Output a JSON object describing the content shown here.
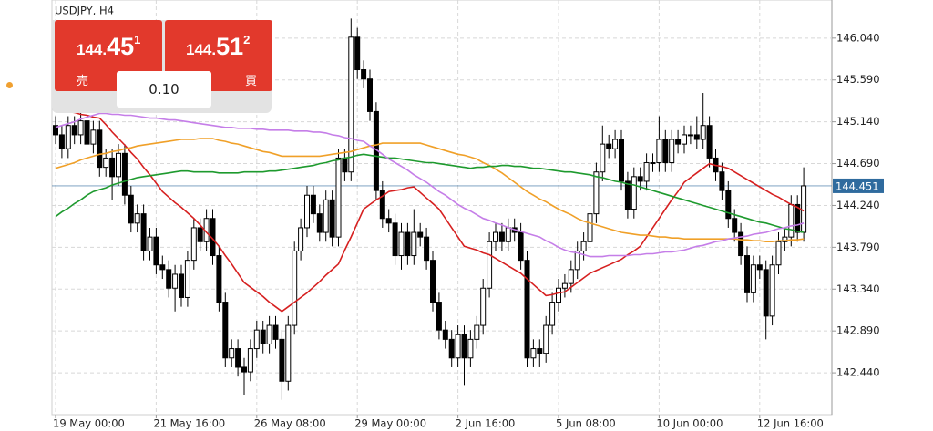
{
  "chart_data": {
    "type": "candlestick",
    "title": "USDJPY, H4",
    "current_price": 144.451,
    "ylim": [
      141.99,
      146.45
    ],
    "yticks": [
      {
        "value": 142.44,
        "label": "142.440"
      },
      {
        "value": 142.89,
        "label": "142.890"
      },
      {
        "value": 143.34,
        "label": "143.340"
      },
      {
        "value": 143.79,
        "label": "143.790"
      },
      {
        "value": 144.24,
        "label": "144.240"
      },
      {
        "value": 144.69,
        "label": "144.690"
      },
      {
        "value": 145.14,
        "label": "145.140"
      },
      {
        "value": 145.59,
        "label": "145.590"
      },
      {
        "value": 146.04,
        "label": "146.040"
      }
    ],
    "grid": true,
    "up_color": "#ffffff",
    "down_color": "#000000",
    "price_line_color": "#2f6b9e",
    "categories": [
      "19 May 00:00",
      null,
      null,
      null,
      null,
      null,
      null,
      null,
      null,
      null,
      null,
      null,
      null,
      null,
      null,
      null,
      "21 May 16:00",
      null,
      null,
      null,
      null,
      null,
      null,
      null,
      null,
      null,
      null,
      null,
      null,
      null,
      null,
      null,
      "26 May 08:00",
      null,
      null,
      null,
      null,
      null,
      null,
      null,
      null,
      null,
      null,
      null,
      null,
      null,
      null,
      null,
      "29 May 00:00",
      null,
      null,
      null,
      null,
      null,
      null,
      null,
      null,
      null,
      null,
      null,
      null,
      null,
      null,
      null,
      "2 Jun 16:00",
      null,
      null,
      null,
      null,
      null,
      null,
      null,
      null,
      null,
      null,
      null,
      null,
      null,
      null,
      null,
      "5 Jun 08:00",
      null,
      null,
      null,
      null,
      null,
      null,
      null,
      null,
      null,
      null,
      null,
      null,
      null,
      null,
      null,
      "10 Jun 00:00",
      null,
      null,
      null,
      null,
      null,
      null,
      null,
      null,
      null,
      null,
      null,
      null,
      null,
      null,
      null,
      "12 Jun 16:00",
      null,
      null,
      null,
      null,
      null,
      null,
      null
    ],
    "open": [
      145.1,
      145.0,
      144.85,
      145.1,
      145.0,
      145.15,
      144.9,
      145.05,
      144.65,
      144.75,
      144.55,
      144.8,
      144.35,
      144.05,
      144.15,
      143.75,
      143.9,
      143.6,
      143.55,
      143.35,
      143.5,
      143.25,
      143.65,
      144.0,
      143.85,
      144.1,
      143.7,
      143.2,
      142.6,
      142.7,
      142.5,
      142.45,
      142.7,
      142.9,
      142.75,
      142.95,
      142.8,
      142.35,
      142.95,
      143.75,
      144.0,
      144.35,
      144.15,
      143.95,
      144.3,
      143.9,
      144.75,
      144.6,
      146.05,
      145.7,
      145.6,
      145.25,
      144.4,
      144.1,
      144.05,
      143.7,
      143.95,
      143.7,
      143.95,
      143.9,
      143.65,
      143.2,
      142.9,
      142.8,
      142.6,
      142.85,
      142.6,
      142.8,
      142.95,
      143.35,
      143.85,
      143.95,
      143.85,
      144.0,
      143.95,
      143.65,
      142.6,
      142.7,
      142.65,
      142.95,
      143.2,
      143.35,
      143.4,
      143.55,
      143.75,
      143.85,
      144.15,
      144.6,
      144.9,
      144.85,
      144.95,
      144.5,
      144.2,
      144.55,
      144.5,
      144.7,
      144.7,
      144.95,
      144.7,
      144.95,
      144.9,
      145.0,
      145.0,
      144.95,
      145.1,
      144.75,
      144.6,
      144.4,
      144.1,
      143.95,
      143.7,
      143.3,
      143.6,
      143.55,
      143.05,
      143.6,
      143.85,
      143.9,
      144.25,
      143.95
    ],
    "high": [
      145.2,
      145.1,
      145.2,
      145.2,
      145.25,
      145.25,
      145.15,
      145.15,
      144.85,
      144.85,
      144.9,
      144.9,
      144.45,
      144.25,
      144.25,
      144.0,
      144.0,
      143.7,
      143.65,
      143.6,
      143.6,
      143.75,
      144.1,
      144.1,
      144.2,
      144.2,
      143.8,
      143.3,
      142.8,
      142.8,
      142.6,
      142.8,
      143.0,
      143.0,
      143.05,
      143.05,
      142.9,
      143.05,
      143.85,
      144.1,
      144.45,
      144.45,
      144.25,
      144.4,
      144.4,
      144.85,
      144.85,
      146.25,
      146.15,
      145.8,
      145.7,
      145.35,
      144.5,
      144.2,
      144.15,
      144.05,
      144.05,
      144.2,
      144.05,
      144.0,
      143.75,
      143.3,
      143.0,
      142.9,
      142.95,
      142.95,
      142.9,
      143.05,
      143.45,
      143.95,
      144.05,
      144.05,
      144.1,
      144.1,
      144.05,
      143.75,
      142.8,
      142.8,
      143.05,
      143.3,
      143.45,
      143.5,
      143.65,
      143.85,
      143.95,
      144.25,
      144.7,
      145.1,
      145.0,
      145.05,
      145.05,
      144.6,
      144.65,
      144.65,
      144.8,
      144.8,
      145.2,
      145.05,
      145.05,
      145.05,
      145.1,
      145.1,
      145.2,
      145.45,
      145.2,
      144.85,
      144.7,
      144.5,
      144.2,
      144.05,
      143.8,
      143.7,
      143.7,
      143.65,
      143.7,
      143.95,
      144.0,
      144.35,
      144.35,
      144.65
    ],
    "low": [
      144.9,
      144.75,
      144.75,
      144.9,
      144.9,
      144.8,
      144.8,
      144.55,
      144.55,
      144.3,
      144.45,
      144.25,
      143.95,
      143.95,
      143.65,
      143.65,
      143.5,
      143.45,
      143.25,
      143.1,
      143.15,
      143.15,
      143.55,
      143.75,
      143.75,
      143.6,
      143.1,
      142.5,
      142.5,
      142.4,
      142.2,
      142.35,
      142.6,
      142.65,
      142.65,
      142.7,
      142.15,
      142.25,
      142.85,
      143.65,
      143.9,
      144.05,
      143.85,
      143.85,
      143.8,
      143.8,
      144.5,
      144.5,
      145.6,
      145.5,
      145.15,
      144.3,
      144.0,
      143.95,
      143.6,
      143.55,
      143.6,
      143.6,
      143.8,
      143.55,
      143.1,
      142.8,
      142.7,
      142.5,
      142.5,
      142.3,
      142.5,
      142.7,
      142.85,
      143.25,
      143.75,
      143.75,
      143.75,
      143.85,
      143.55,
      142.5,
      142.5,
      142.5,
      142.55,
      142.85,
      143.1,
      143.25,
      143.3,
      143.45,
      143.65,
      143.75,
      144.05,
      144.5,
      144.75,
      144.75,
      144.4,
      144.1,
      144.1,
      144.4,
      144.4,
      144.6,
      144.6,
      144.6,
      144.6,
      144.8,
      144.8,
      144.9,
      144.85,
      144.85,
      144.65,
      144.5,
      144.3,
      144.0,
      143.85,
      143.6,
      143.2,
      143.2,
      143.45,
      142.8,
      142.95,
      143.5,
      143.75,
      143.8,
      143.85,
      143.85
    ],
    "close": [
      145.0,
      144.85,
      145.1,
      145.0,
      145.15,
      144.9,
      145.05,
      144.65,
      144.75,
      144.55,
      144.8,
      144.35,
      144.05,
      144.15,
      143.75,
      143.9,
      143.6,
      143.55,
      143.35,
      143.5,
      143.25,
      143.65,
      144.0,
      143.85,
      144.1,
      143.7,
      143.2,
      142.6,
      142.7,
      142.5,
      142.45,
      142.7,
      142.9,
      142.75,
      142.95,
      142.8,
      142.35,
      142.95,
      143.75,
      144.0,
      144.35,
      144.15,
      143.95,
      144.3,
      143.9,
      144.75,
      144.6,
      146.05,
      145.7,
      145.6,
      145.25,
      144.4,
      144.1,
      144.05,
      143.7,
      143.95,
      143.7,
      143.95,
      143.9,
      143.65,
      143.2,
      142.9,
      142.8,
      142.6,
      142.85,
      142.6,
      142.8,
      142.95,
      143.35,
      143.85,
      143.95,
      143.85,
      144.0,
      143.95,
      143.65,
      142.6,
      142.7,
      142.65,
      142.95,
      143.2,
      143.35,
      143.4,
      143.55,
      143.75,
      143.85,
      144.15,
      144.6,
      144.9,
      144.85,
      144.95,
      144.5,
      144.2,
      144.55,
      144.5,
      144.7,
      144.7,
      144.95,
      144.7,
      144.95,
      144.9,
      145.0,
      145.0,
      144.95,
      145.1,
      144.75,
      144.6,
      144.4,
      144.1,
      143.95,
      143.7,
      143.3,
      143.6,
      143.55,
      143.05,
      143.6,
      143.85,
      143.9,
      144.25,
      143.95,
      144.451
    ],
    "indicators": [
      {
        "color": "#d62020",
        "values": [
          145.28,
          145.27,
          145.25,
          145.24,
          145.22,
          145.21,
          145.19,
          145.18,
          145.11,
          145.03,
          144.96,
          144.89,
          144.81,
          144.74,
          144.65,
          144.57,
          144.48,
          144.39,
          144.33,
          144.27,
          144.22,
          144.16,
          144.1,
          144.03,
          143.95,
          143.88,
          143.8,
          143.7,
          143.61,
          143.51,
          143.41,
          143.36,
          143.31,
          143.26,
          143.2,
          143.15,
          143.1,
          143.15,
          143.2,
          143.25,
          143.3,
          143.36,
          143.42,
          143.49,
          143.55,
          143.61,
          143.76,
          143.9,
          144.05,
          144.2,
          144.25,
          144.3,
          144.34,
          144.39,
          144.4,
          144.41,
          144.43,
          144.44,
          144.38,
          144.32,
          144.26,
          144.2,
          144.1,
          144.0,
          143.9,
          143.8,
          143.78,
          143.76,
          143.73,
          143.71,
          143.67,
          143.63,
          143.59,
          143.55,
          143.51,
          143.45,
          143.39,
          143.33,
          143.27,
          143.28,
          143.3,
          143.31,
          143.36,
          143.41,
          143.46,
          143.51,
          143.54,
          143.57,
          143.6,
          143.63,
          143.66,
          143.71,
          143.75,
          143.8,
          143.9,
          144.0,
          144.1,
          144.2,
          144.3,
          144.39,
          144.49,
          144.54,
          144.59,
          144.64,
          144.69,
          144.67,
          144.66,
          144.64,
          144.6,
          144.56,
          144.52,
          144.48,
          144.44,
          144.4,
          144.36,
          144.33,
          144.29,
          144.25,
          144.22,
          144.18
        ]
      },
      {
        "color": "#f0a028",
        "values": [
          144.64,
          144.66,
          144.68,
          144.7,
          144.73,
          144.75,
          144.77,
          144.79,
          144.8,
          144.82,
          144.83,
          144.85,
          144.86,
          144.88,
          144.89,
          144.9,
          144.91,
          144.92,
          144.93,
          144.94,
          144.95,
          144.95,
          144.95,
          144.96,
          144.96,
          144.96,
          144.94,
          144.93,
          144.91,
          144.9,
          144.88,
          144.86,
          144.84,
          144.82,
          144.81,
          144.79,
          144.77,
          144.77,
          144.77,
          144.77,
          144.77,
          144.77,
          144.77,
          144.78,
          144.79,
          144.8,
          144.81,
          144.82,
          144.84,
          144.86,
          144.88,
          144.89,
          144.91,
          144.91,
          144.91,
          144.91,
          144.91,
          144.91,
          144.91,
          144.89,
          144.87,
          144.85,
          144.83,
          144.81,
          144.79,
          144.78,
          144.76,
          144.74,
          144.7,
          144.67,
          144.63,
          144.59,
          144.54,
          144.49,
          144.44,
          144.39,
          144.35,
          144.31,
          144.28,
          144.24,
          144.2,
          144.17,
          144.14,
          144.1,
          144.07,
          144.05,
          144.03,
          144.01,
          143.99,
          143.97,
          143.95,
          143.94,
          143.93,
          143.92,
          143.92,
          143.91,
          143.9,
          143.9,
          143.89,
          143.89,
          143.88,
          143.88,
          143.88,
          143.88,
          143.88,
          143.88,
          143.88,
          143.88,
          143.88,
          143.87,
          143.87,
          143.86,
          143.86,
          143.85,
          143.85,
          143.86,
          143.86,
          143.87,
          143.87,
          143.88
        ]
      },
      {
        "color": "#1e9a2e",
        "values": [
          144.12,
          144.17,
          144.21,
          144.26,
          144.3,
          144.35,
          144.39,
          144.41,
          144.43,
          144.46,
          144.48,
          144.5,
          144.52,
          144.54,
          144.55,
          144.56,
          144.57,
          144.58,
          144.59,
          144.6,
          144.61,
          144.61,
          144.6,
          144.6,
          144.6,
          144.6,
          144.59,
          144.59,
          144.59,
          144.59,
          144.6,
          144.6,
          144.6,
          144.6,
          144.61,
          144.61,
          144.62,
          144.63,
          144.64,
          144.65,
          144.66,
          144.67,
          144.69,
          144.7,
          144.72,
          144.73,
          144.75,
          144.76,
          144.78,
          144.79,
          144.78,
          144.77,
          144.76,
          144.75,
          144.75,
          144.74,
          144.73,
          144.72,
          144.71,
          144.7,
          144.7,
          144.69,
          144.68,
          144.67,
          144.66,
          144.65,
          144.64,
          144.65,
          144.65,
          144.66,
          144.66,
          144.67,
          144.67,
          144.66,
          144.66,
          144.65,
          144.64,
          144.64,
          144.63,
          144.62,
          144.61,
          144.6,
          144.6,
          144.59,
          144.58,
          144.57,
          144.55,
          144.54,
          144.52,
          144.5,
          144.49,
          144.47,
          144.46,
          144.44,
          144.42,
          144.4,
          144.38,
          144.36,
          144.34,
          144.32,
          144.3,
          144.28,
          144.26,
          144.24,
          144.22,
          144.2,
          144.18,
          144.16,
          144.14,
          144.12,
          144.1,
          144.08,
          144.06,
          144.05,
          144.03,
          144.01,
          143.99,
          143.98,
          143.96,
          143.95
        ]
      },
      {
        "color": "#c57ee8",
        "values": [
          145.08,
          145.1,
          145.12,
          145.14,
          145.17,
          145.19,
          145.21,
          145.23,
          145.23,
          145.22,
          145.22,
          145.21,
          145.21,
          145.2,
          145.19,
          145.18,
          145.18,
          145.17,
          145.16,
          145.16,
          145.15,
          145.14,
          145.13,
          145.12,
          145.11,
          145.1,
          145.09,
          145.08,
          145.08,
          145.07,
          145.07,
          145.07,
          145.06,
          145.06,
          145.05,
          145.05,
          145.05,
          145.05,
          145.04,
          145.04,
          145.04,
          145.03,
          145.03,
          145.02,
          145.0,
          144.99,
          144.97,
          144.96,
          144.94,
          144.93,
          144.88,
          144.84,
          144.79,
          144.74,
          144.7,
          144.66,
          144.62,
          144.57,
          144.53,
          144.49,
          144.44,
          144.39,
          144.35,
          144.3,
          144.25,
          144.21,
          144.18,
          144.14,
          144.1,
          144.08,
          144.05,
          144.03,
          144.0,
          143.98,
          143.96,
          143.94,
          143.92,
          143.9,
          143.86,
          143.83,
          143.79,
          143.76,
          143.74,
          143.73,
          143.71,
          143.69,
          143.69,
          143.69,
          143.7,
          143.7,
          143.7,
          143.7,
          143.71,
          143.71,
          143.72,
          143.72,
          143.73,
          143.74,
          143.74,
          143.75,
          143.76,
          143.78,
          143.8,
          143.81,
          143.83,
          143.85,
          143.86,
          143.88,
          143.89,
          143.9,
          143.91,
          143.93,
          143.94,
          143.95,
          143.97,
          143.99,
          144.0,
          144.02,
          144.03,
          144.05
        ]
      }
    ]
  },
  "trade_panel": {
    "sell": {
      "price_head": "144.",
      "price_big": "45",
      "price_tail": "1",
      "label": "売"
    },
    "buy": {
      "price_head": "144.",
      "price_big": "51",
      "price_tail": "2",
      "label": "買"
    },
    "volume": "0.10"
  }
}
